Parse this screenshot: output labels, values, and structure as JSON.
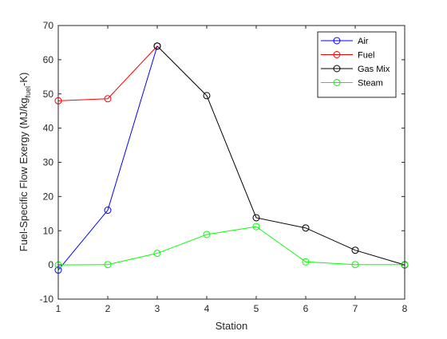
{
  "chart_data": {
    "type": "line",
    "title": "",
    "xlabel": "Station",
    "ylabel_main": "Fuel-Specific Flow Exergy (MJ/kg",
    "ylabel_sub": "fuel",
    "ylabel_end": "-K)",
    "xlim": [
      1,
      8
    ],
    "ylim": [
      -10,
      70
    ],
    "xticks": [
      1,
      2,
      3,
      4,
      5,
      6,
      7,
      8
    ],
    "yticks": [
      -10,
      0,
      10,
      20,
      30,
      40,
      50,
      60,
      70
    ],
    "grid": false,
    "legend_position": "top-right",
    "series": [
      {
        "name": "Air",
        "color": "#0000ff",
        "x": [
          1,
          2,
          3
        ],
        "y": [
          -1.5,
          16.0,
          64.0
        ]
      },
      {
        "name": "Fuel",
        "color": "#ff0000",
        "x": [
          1,
          2,
          3
        ],
        "y": [
          48.0,
          48.6,
          64.0
        ]
      },
      {
        "name": "Gas Mix",
        "color": "#000000",
        "x": [
          3,
          4,
          5,
          6,
          7,
          8
        ],
        "y": [
          64.0,
          49.5,
          13.8,
          10.8,
          4.3,
          0.0
        ]
      },
      {
        "name": "Steam",
        "color": "#00ff00",
        "x": [
          1,
          2,
          3,
          4,
          5,
          6,
          7,
          8
        ],
        "y": [
          0.0,
          0.1,
          3.4,
          8.9,
          11.2,
          0.9,
          0.1,
          0.1
        ]
      }
    ]
  }
}
